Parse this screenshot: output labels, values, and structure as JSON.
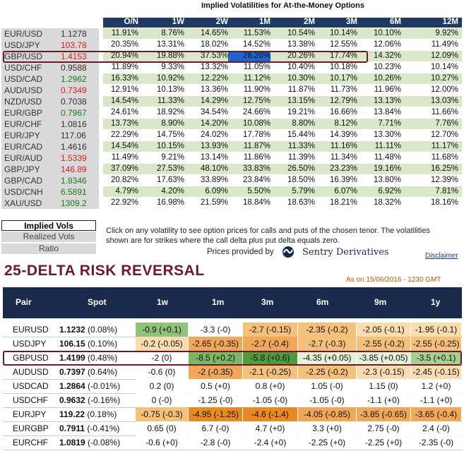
{
  "implied_title": "Implied Volatilities for At-the-Money Options",
  "tenors": [
    "O/N",
    "1W",
    "2W",
    "1M",
    "2M",
    "3M",
    "6M",
    "12M"
  ],
  "vol_rows": [
    {
      "pair": "EUR/USD",
      "spot": "1.1278",
      "spot_color": "#333333",
      "vols": [
        "11.91%",
        "8.76%",
        "14.65%",
        "11.53%",
        "10.54%",
        "10.14%",
        "10.10%",
        "9.92%"
      ]
    },
    {
      "pair": "USD/JPY",
      "spot": "103.78",
      "spot_color": "#d62020",
      "vols": [
        "20.35%",
        "13.31%",
        "18.02%",
        "14.52%",
        "13.38%",
        "12.55%",
        "12.06%",
        "11.49%"
      ]
    },
    {
      "pair": "GBP/USD",
      "spot": "1.4153",
      "spot_color": "#d62020",
      "vols": [
        "20.94%",
        "19.88%",
        "37.53%",
        "26.26%",
        "20.26%",
        "17.74%",
        "14.32%",
        "12.09%"
      ]
    },
    {
      "pair": "USD/CHF",
      "spot": "0.9588",
      "spot_color": "#333333",
      "vols": [
        "11.89%",
        "9.33%",
        "13.32%",
        "11.05%",
        "10.40%",
        "10.18%",
        "10.23%",
        "10.14%"
      ]
    },
    {
      "pair": "USD/CAD",
      "spot": "1.2962",
      "spot_color": "#1a7a1a",
      "vols": [
        "16.33%",
        "10.92%",
        "12.22%",
        "11.12%",
        "10.30%",
        "10.17%",
        "10.26%",
        "10.27%"
      ]
    },
    {
      "pair": "AUD/USD",
      "spot": "0.7349",
      "spot_color": "#d62020",
      "vols": [
        "12.91%",
        "10.13%",
        "13.36%",
        "11.90%",
        "11.87%",
        "11.73%",
        "11.96%",
        "12.00%"
      ]
    },
    {
      "pair": "NZD/USD",
      "spot": "0.7038",
      "spot_color": "#333333",
      "vols": [
        "14.54%",
        "11.33%",
        "14.29%",
        "12.75%",
        "13.15%",
        "12.79%",
        "13.13%",
        "13.03%"
      ]
    },
    {
      "pair": "EUR/GBP",
      "spot": "0.7967",
      "spot_color": "#1a7a1a",
      "vols": [
        "24.61%",
        "18.92%",
        "34.54%",
        "24.66%",
        "19.21%",
        "16.66%",
        "13.84%",
        "11.66%"
      ]
    },
    {
      "pair": "EUR/CHF",
      "spot": "1.0816",
      "spot_color": "#333333",
      "vols": [
        "13.73%",
        "8.90%",
        "14.20%",
        "10.08%",
        "8.80%",
        "8.12%",
        "7.71%",
        "7.76%"
      ]
    },
    {
      "pair": "EUR/JPY",
      "spot": "117.06",
      "spot_color": "#333333",
      "vols": [
        "22.29%",
        "14.75%",
        "24.02%",
        "17.78%",
        "15.44%",
        "14.39%",
        "13.30%",
        "12.70%"
      ]
    },
    {
      "pair": "EUR/CAD",
      "spot": "1.4616",
      "spot_color": "#333333",
      "vols": [
        "14.54%",
        "10.15%",
        "13.93%",
        "11.87%",
        "11.33%",
        "11.16%",
        "11.11%",
        "11.17%"
      ]
    },
    {
      "pair": "EUR/AUD",
      "spot": "1.5339",
      "spot_color": "#d62020",
      "vols": [
        "11.49%",
        "9.21%",
        "13.14%",
        "11.86%",
        "11.39%",
        "11.34%",
        "11.48%",
        "11.68%"
      ]
    },
    {
      "pair": "GBP/JPY",
      "spot": "146.89",
      "spot_color": "#d62020",
      "vols": [
        "37.09%",
        "27.53%",
        "48.10%",
        "33.83%",
        "26.50%",
        "23.23%",
        "19.16%",
        "16.25%"
      ]
    },
    {
      "pair": "GBP/CAD",
      "spot": "1.8346",
      "spot_color": "#1a7a1a",
      "vols": [
        "20.82%",
        "17.63%",
        "33.89%",
        "23.84%",
        "18.50%",
        "16.39%",
        "13.80%",
        "12.39%"
      ]
    },
    {
      "pair": "USD/CNH",
      "spot": "6.5891",
      "spot_color": "#1a7a1a",
      "vols": [
        "4.79%",
        "4.20%",
        "6.09%",
        "5.50%",
        "5.79%",
        "6.07%",
        "6.92%",
        "7.81%"
      ]
    },
    {
      "pair": "XAU/USD",
      "spot": "1309.2",
      "spot_color": "#1a7a1a",
      "vols": [
        "22.92%",
        "16.98%",
        "21.59%",
        "18.84%",
        "18.63%",
        "18.21%",
        "18.32%",
        "18.16%"
      ]
    }
  ],
  "tabs": {
    "implied": "Implied Vols",
    "realized": "Realized Vols",
    "ratio": "Ratio"
  },
  "notes": "Click on any volatility to see option prices for calls and puts of the chosen tenor. The volatilities shown are for strikes where the call delta plus put delta equals zero.",
  "provider_label": "Prices provided by",
  "provider_name": "Sentry Derivatives",
  "disclaimer": "Disclaimer",
  "rr_title": "25-DELTA RISK REVERSAL",
  "rr_date": "As on 15/06/2016 - 1230 GMT",
  "rr_headers": [
    "Pair",
    "Spot",
    "1w",
    "1m",
    "3m",
    "6m",
    "9m",
    "1y"
  ],
  "rr_rows": [
    {
      "pair": "EURUSD",
      "spot": "1.1232",
      "chg": "(0.08%)",
      "cells": [
        {
          "t": "-0.9 (+0.1)",
          "c": "#8fc27a"
        },
        {
          "t": "-3.3 (-0)",
          "c": "#ffffff"
        },
        {
          "t": "-2.7 (-0.15)",
          "c": "#f5c17a"
        },
        {
          "t": "-2.35 (-0.2)",
          "c": "#f5c17a"
        },
        {
          "t": "-2.05 (-0.1)",
          "c": "#f9dcb0"
        },
        {
          "t": "-1.95 (-0.1)",
          "c": "#f9dcb0"
        }
      ]
    },
    {
      "pair": "USDJPY",
      "spot": "106.15",
      "chg": "(0.10%)",
      "cells": [
        {
          "t": "-0.2 (-0.05)",
          "c": "#f9dcb0"
        },
        {
          "t": "-2.65 (-0.35)",
          "c": "#f0a858"
        },
        {
          "t": "-2.7 (-0.4)",
          "c": "#f0a858"
        },
        {
          "t": "-2.7 (-0.3)",
          "c": "#f5c17a"
        },
        {
          "t": "-2.55 (-0.2)",
          "c": "#f5c17a"
        },
        {
          "t": "-2.55 (-0.25)",
          "c": "#f5c17a"
        }
      ]
    },
    {
      "pair": "GBPUSD",
      "spot": "1.4199",
      "chg": "(0.48%)",
      "cells": [
        {
          "t": "-2 (0)",
          "c": "#ffffff"
        },
        {
          "t": "-8.5 (+0.2)",
          "c": "#7bb865"
        },
        {
          "t": "-5.8 (+0.6)",
          "c": "#4e9a3c"
        },
        {
          "t": "-4.35 (+0.05)",
          "c": "#e3f0da"
        },
        {
          "t": "-3.85 (+0.05)",
          "c": "#e3f0da"
        },
        {
          "t": "-3.5 (+0.1)",
          "c": "#a6d090"
        }
      ]
    },
    {
      "pair": "AUDUSD",
      "spot": "0.7397",
      "chg": "(0.64%)",
      "cells": [
        {
          "t": "-0.6 (0)",
          "c": "#ffffff"
        },
        {
          "t": "-2 (-0.35)",
          "c": "#f0a858"
        },
        {
          "t": "-2.1 (-0.25)",
          "c": "#f5c17a"
        },
        {
          "t": "-2.25 (-0.2)",
          "c": "#f5c17a"
        },
        {
          "t": "-2.3 (-0.15)",
          "c": "#f9dcb0"
        },
        {
          "t": "-2.45 (-0.15)",
          "c": "#f9dcb0"
        }
      ]
    },
    {
      "pair": "USDCAD",
      "spot": "1.2864",
      "chg": "(-0.01%)",
      "cells": [
        {
          "t": "0.2 (0)",
          "c": "#ffffff"
        },
        {
          "t": "0.5 (+0)",
          "c": "#ffffff"
        },
        {
          "t": "0.8 (+0)",
          "c": "#ffffff"
        },
        {
          "t": "1.05 (-0)",
          "c": "#ffffff"
        },
        {
          "t": "1.15 (0)",
          "c": "#ffffff"
        },
        {
          "t": "1.2 (+0)",
          "c": "#ffffff"
        }
      ]
    },
    {
      "pair": "USDCHF",
      "spot": "0.9632",
      "chg": "(-0.16%)",
      "cells": [
        {
          "t": "0 (-0)",
          "c": "#ffffff"
        },
        {
          "t": "-1.25 (-0)",
          "c": "#ffffff"
        },
        {
          "t": "-1.05 (-0)",
          "c": "#ffffff"
        },
        {
          "t": "-1.05 (-0)",
          "c": "#ffffff"
        },
        {
          "t": "-1.1 (+0)",
          "c": "#ffffff"
        },
        {
          "t": "-1.1 (+0)",
          "c": "#ffffff"
        }
      ]
    },
    {
      "pair": "EURJPY",
      "spot": "119.22",
      "chg": "(0.18%)",
      "cells": [
        {
          "t": "-0.75 (-0.3)",
          "c": "#f5c17a"
        },
        {
          "t": "-4.95 (-1.25)",
          "c": "#e88a20"
        },
        {
          "t": "-4.6 (-1.4)",
          "c": "#e88a20"
        },
        {
          "t": "-4.05 (-0.85)",
          "c": "#f0a858"
        },
        {
          "t": "-3.85 (-0.65)",
          "c": "#f0a858"
        },
        {
          "t": "-3.65 (-0.4)",
          "c": "#f0a858"
        }
      ]
    },
    {
      "pair": "EURGBP",
      "spot": "0.7911",
      "chg": "(-0.41%)",
      "cells": [
        {
          "t": "0.65 (0)",
          "c": "#ffffff"
        },
        {
          "t": "6.7 (-0)",
          "c": "#ffffff"
        },
        {
          "t": "4.7 (+0)",
          "c": "#ffffff"
        },
        {
          "t": "3.3 (+0)",
          "c": "#ffffff"
        },
        {
          "t": "2.75 (-0)",
          "c": "#ffffff"
        },
        {
          "t": "2.4 (-0)",
          "c": "#ffffff"
        }
      ]
    },
    {
      "pair": "EURCHF",
      "spot": "1.0819",
      "chg": "(-0.08%)",
      "cells": [
        {
          "t": "-0.6 (+0)",
          "c": "#ffffff"
        },
        {
          "t": "-2.8 (-0)",
          "c": "#ffffff"
        },
        {
          "t": "-2.4 (+0)",
          "c": "#ffffff"
        },
        {
          "t": "-2.25 (+0)",
          "c": "#ffffff"
        },
        {
          "t": "-2.25 (+0)",
          "c": "#ffffff"
        },
        {
          "t": "-2.35 (-0)",
          "c": "#ffffff"
        }
      ]
    }
  ]
}
